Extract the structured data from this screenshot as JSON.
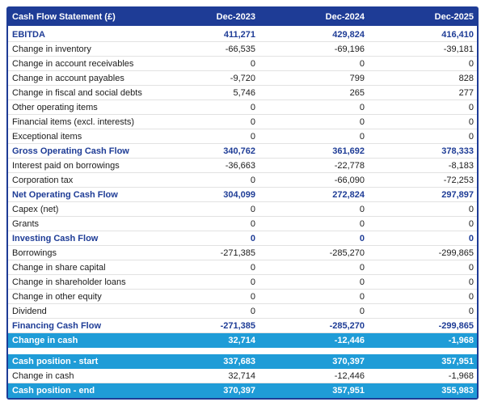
{
  "table": {
    "title": "Cash Flow Statement (£)",
    "columns": [
      "Dec-2023",
      "Dec-2024",
      "Dec-2025"
    ],
    "rows": [
      {
        "label": "EBITDA",
        "values": [
          "411,271",
          "429,824",
          "416,410"
        ],
        "style": "total"
      },
      {
        "label": "Change in inventory",
        "values": [
          "-66,535",
          "-69,196",
          "-39,181"
        ],
        "style": "normal"
      },
      {
        "label": "Change in account receivables",
        "values": [
          "0",
          "0",
          "0"
        ],
        "style": "normal"
      },
      {
        "label": "Change in account payables",
        "values": [
          "-9,720",
          "799",
          "828"
        ],
        "style": "normal"
      },
      {
        "label": "Change in fiscal and social debts",
        "values": [
          "5,746",
          "265",
          "277"
        ],
        "style": "normal"
      },
      {
        "label": "Other operating items",
        "values": [
          "0",
          "0",
          "0"
        ],
        "style": "normal"
      },
      {
        "label": "Financial items (excl. interests)",
        "values": [
          "0",
          "0",
          "0"
        ],
        "style": "normal"
      },
      {
        "label": "Exceptional items",
        "values": [
          "0",
          "0",
          "0"
        ],
        "style": "normal"
      },
      {
        "label": "Gross Operating Cash Flow",
        "values": [
          "340,762",
          "361,692",
          "378,333"
        ],
        "style": "total"
      },
      {
        "label": "Interest paid on borrowings",
        "values": [
          "-36,663",
          "-22,778",
          "-8,183"
        ],
        "style": "normal"
      },
      {
        "label": "Corporation tax",
        "values": [
          "0",
          "-66,090",
          "-72,253"
        ],
        "style": "normal"
      },
      {
        "label": "Net Operating Cash Flow",
        "values": [
          "304,099",
          "272,824",
          "297,897"
        ],
        "style": "total"
      },
      {
        "label": "Capex (net)",
        "values": [
          "0",
          "0",
          "0"
        ],
        "style": "normal"
      },
      {
        "label": "Grants",
        "values": [
          "0",
          "0",
          "0"
        ],
        "style": "normal"
      },
      {
        "label": "Investing Cash Flow",
        "values": [
          "0",
          "0",
          "0"
        ],
        "style": "total"
      },
      {
        "label": "Borrowings",
        "values": [
          "-271,385",
          "-285,270",
          "-299,865"
        ],
        "style": "normal"
      },
      {
        "label": "Change in share capital",
        "values": [
          "0",
          "0",
          "0"
        ],
        "style": "normal"
      },
      {
        "label": "Change in shareholder loans",
        "values": [
          "0",
          "0",
          "0"
        ],
        "style": "normal"
      },
      {
        "label": "Change in other equity",
        "values": [
          "0",
          "0",
          "0"
        ],
        "style": "normal"
      },
      {
        "label": "Dividend",
        "values": [
          "0",
          "0",
          "0"
        ],
        "style": "normal"
      },
      {
        "label": "Financing Cash Flow",
        "values": [
          "-271,385",
          "-285,270",
          "-299,865"
        ],
        "style": "total"
      },
      {
        "label": "Change in cash",
        "values": [
          "32,714",
          "-12,446",
          "-1,968"
        ],
        "style": "highlight"
      }
    ],
    "summary_rows": [
      {
        "label": "Cash position - start",
        "values": [
          "337,683",
          "370,397",
          "357,951"
        ],
        "style": "highlight"
      },
      {
        "label": "Change in cash",
        "values": [
          "32,714",
          "-12,446",
          "-1,968"
        ],
        "style": "normal"
      },
      {
        "label": "Cash position - end",
        "values": [
          "370,397",
          "357,951",
          "355,983"
        ],
        "style": "highlight"
      }
    ],
    "colors": {
      "header_background": "#1e3c96",
      "total_row_text": "#1e3c96",
      "highlight_row_background": "#1f9cd7",
      "highlight_row_text": "#ffffff",
      "body_text": "#1b1b1b",
      "row_separator": "#e2e2e2",
      "outer_border": "#1e3c96"
    }
  }
}
